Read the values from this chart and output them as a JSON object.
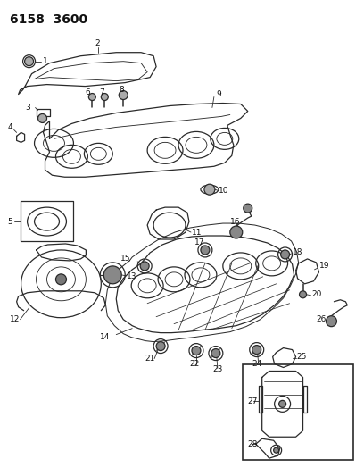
{
  "title": "6158  3600",
  "title_fontsize": 10,
  "title_fontweight": "bold",
  "bg_color": "#ffffff",
  "fig_width": 4.08,
  "fig_height": 5.33,
  "dpi": 100,
  "lc": "#2a2a2a",
  "lw": 0.9,
  "fs": 6.5
}
